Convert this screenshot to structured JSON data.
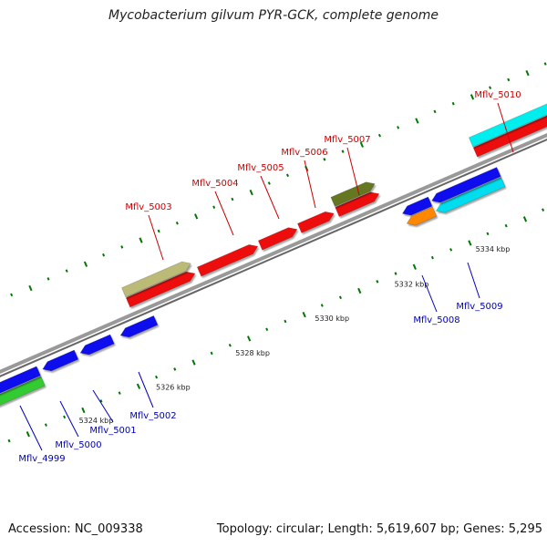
{
  "header": {
    "title": "Mycobacterium gilvum PYR-GCK, complete genome"
  },
  "footer": {
    "accession": "Accession: NC_009338",
    "summary": "Topology: circular; Length: 5,619,607 bp; Genes: 5,295"
  },
  "scale": {
    "unit": "kbp",
    "ticks": [
      {
        "kbp": 5324,
        "label": "5324 kbp"
      },
      {
        "kbp": 5326,
        "label": "5326 kbp"
      },
      {
        "kbp": 5328,
        "label": "5328 kbp"
      },
      {
        "kbp": 5330,
        "label": "5330 kbp"
      },
      {
        "kbp": 5332,
        "label": "5332 kbp"
      },
      {
        "kbp": 5334,
        "label": "5334 kbp"
      }
    ]
  },
  "colors": {
    "backbone": "#808080",
    "label_forward": "#cc0000",
    "label_reverse": "#0000bb",
    "tick": "#007700"
  },
  "genes": [
    {
      "locus": "Mflv_4999",
      "strand": "reverse",
      "color": "#33cc33",
      "label": "Mflv_4999"
    },
    {
      "locus": "Mflv_5000",
      "strand": "reverse",
      "color": "#1111ee",
      "label": "Mflv_5000"
    },
    {
      "locus": "Mflv_5001",
      "strand": "reverse",
      "color": "#1111ee",
      "label": "Mflv_5001"
    },
    {
      "locus": "Mflv_5002",
      "strand": "reverse",
      "color": "#1111ee",
      "label": "Mflv_5002"
    },
    {
      "locus": "Mflv_5003",
      "strand": "forward",
      "color": "#bbbb77",
      "label": "Mflv_5003"
    },
    {
      "locus": "Mflv_5004",
      "strand": "forward",
      "color": "#ee1111",
      "label": "Mflv_5004"
    },
    {
      "locus": "Mflv_5005",
      "strand": "forward",
      "color": "#ee1111",
      "label": "Mflv_5005"
    },
    {
      "locus": "Mflv_5006",
      "strand": "forward",
      "color": "#ee1111",
      "label": "Mflv_5006"
    },
    {
      "locus": "Mflv_5007",
      "strand": "forward",
      "color": "#667722",
      "label": "Mflv_5007"
    },
    {
      "locus": "Mflv_5008",
      "strand": "reverse",
      "color": "#ff8800",
      "label": "Mflv_5008"
    },
    {
      "locus": "Mflv_5009",
      "strand": "reverse",
      "color": "#00ddee",
      "label": "Mflv_5009"
    },
    {
      "locus": "Mflv_5010",
      "strand": "forward",
      "color": "#00eeee",
      "label": "Mflv_5010"
    }
  ]
}
